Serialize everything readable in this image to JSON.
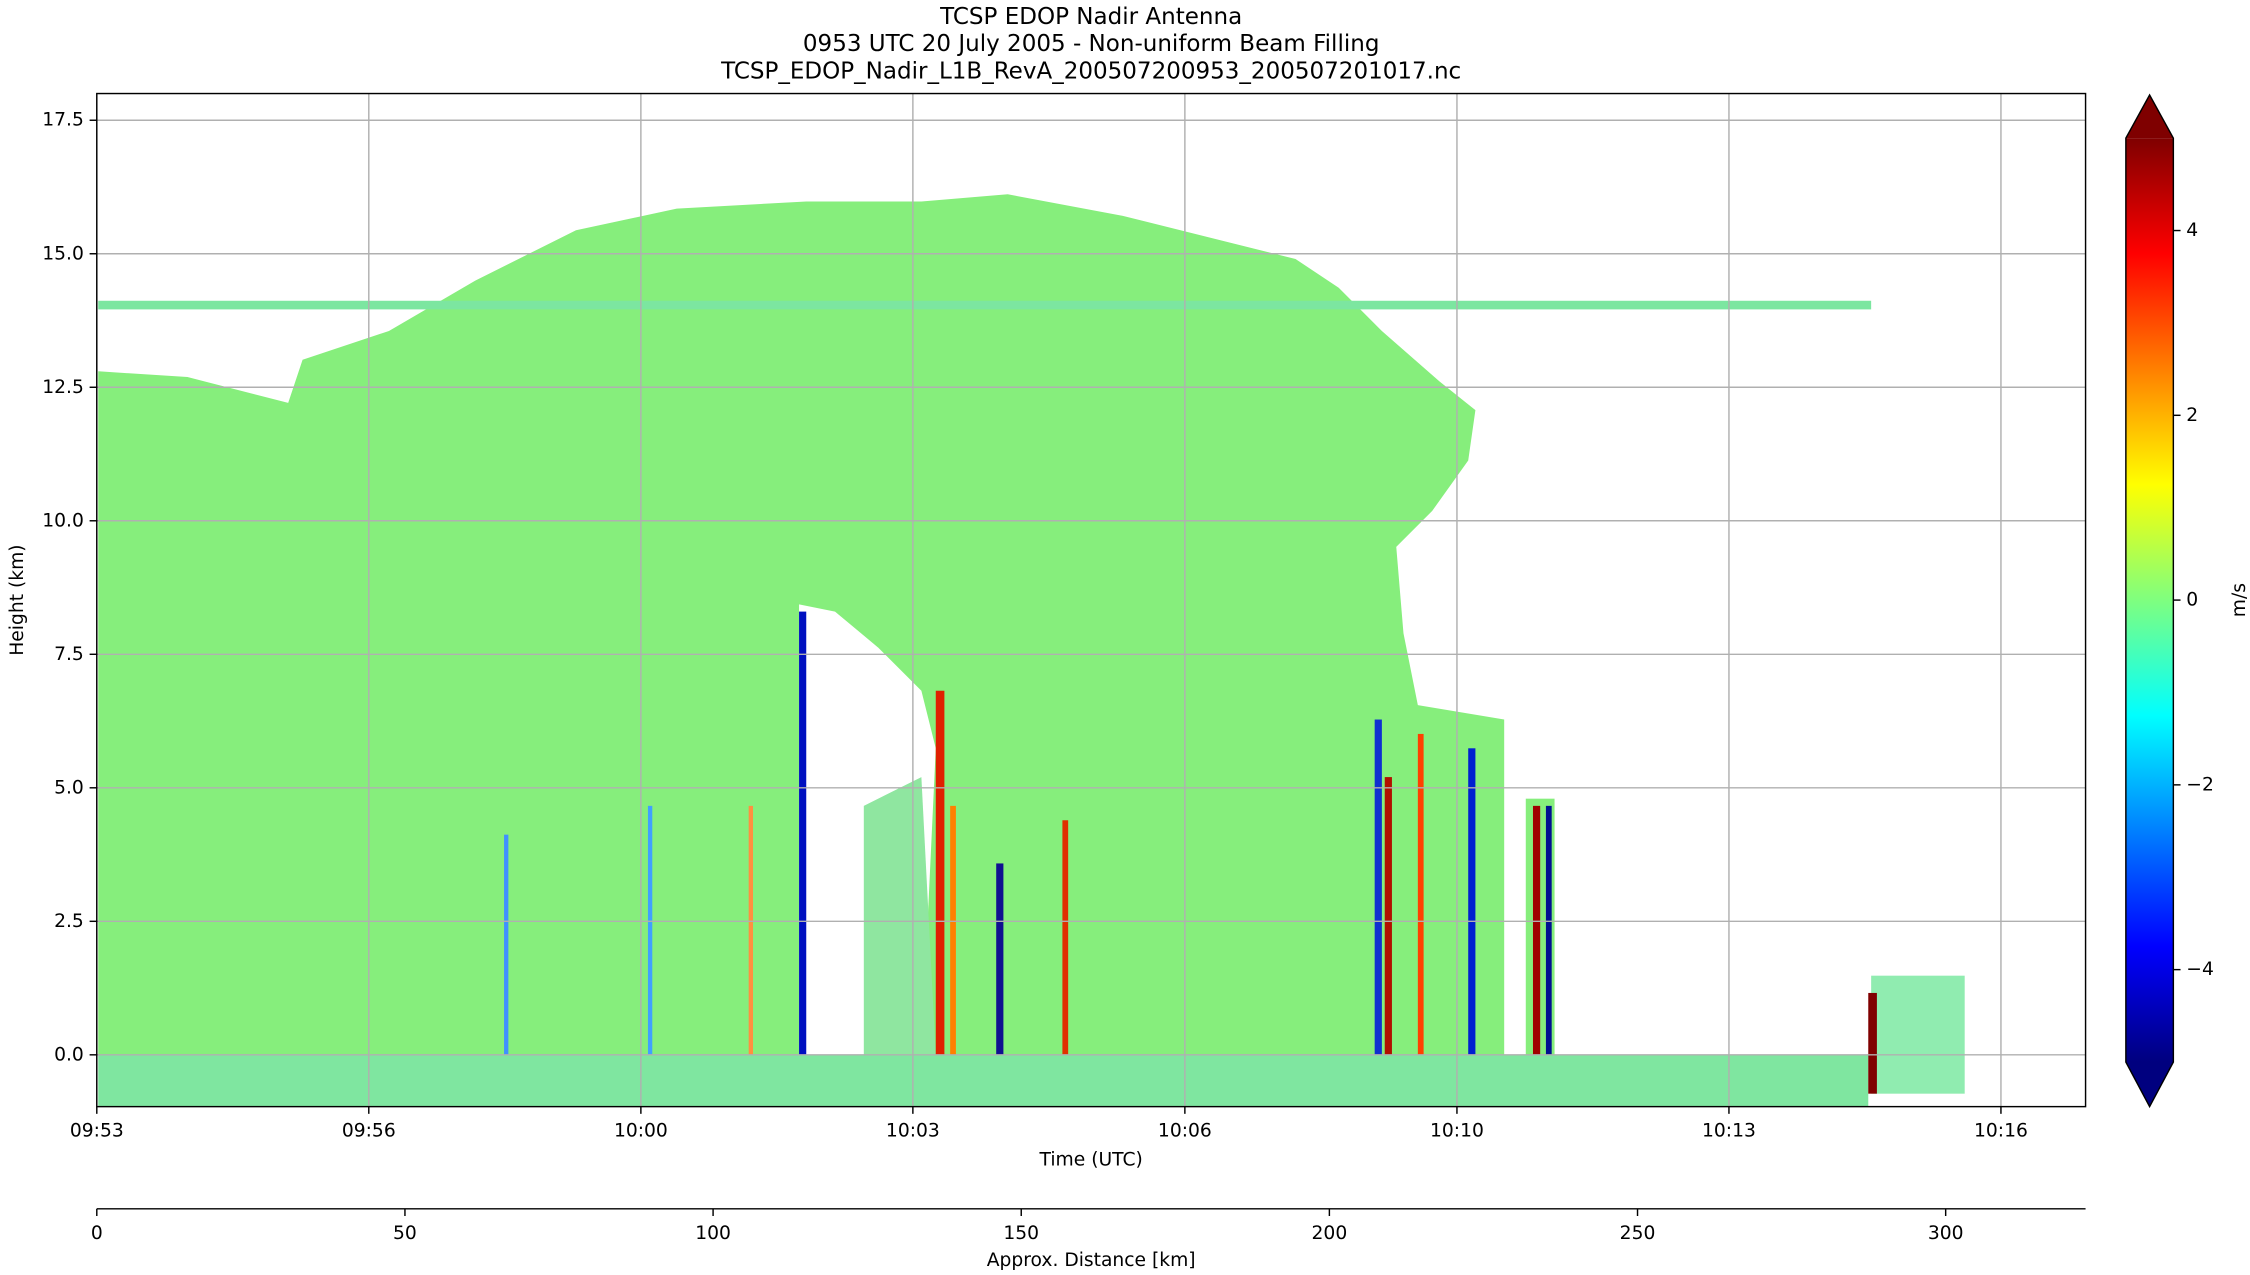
{
  "chart_data": {
    "type": "heatmap",
    "title": [
      "TCSP EDOP Nadir Antenna",
      "0953 UTC 20 July 2005 - Non-uniform Beam Filling",
      "TCSP_EDOP_Nadir_L1B_RevA_200507200953_200507201017.nc"
    ],
    "xlabel": "Time (UTC)",
    "ylabel": "Height (km)",
    "xlim": [
      593,
      617.37
    ],
    "xticks": [
      {
        "value": 593,
        "label": "09:53"
      },
      {
        "value": 596.333,
        "label": "09:56"
      },
      {
        "value": 599.667,
        "label": "10:00"
      },
      {
        "value": 603,
        "label": "10:03"
      },
      {
        "value": 606.333,
        "label": "10:06"
      },
      {
        "value": 609.667,
        "label": "10:10"
      },
      {
        "value": 613,
        "label": "10:13"
      },
      {
        "value": 616.333,
        "label": "10:16"
      }
    ],
    "ylim": [
      -0.97,
      18.0
    ],
    "yticks": [
      {
        "value": 0,
        "label": "0.0"
      },
      2.5,
      {
        "value": 5,
        "label": "5.0"
      },
      7.5,
      {
        "value": 10,
        "label": "10.0"
      },
      12.5,
      {
        "value": 15,
        "label": "15.0"
      },
      17.5
    ],
    "x2label": "Approx. Distance [km]",
    "x2lim": [
      0,
      322.7
    ],
    "x2ticks": [
      0,
      50,
      100,
      150,
      200,
      250,
      300
    ],
    "grid": true,
    "colorbar": {
      "label": "m/s",
      "lim": [
        -5,
        5
      ],
      "ticks": [
        {
          "value": -4,
          "label": "−4"
        },
        {
          "value": -2,
          "label": "−2"
        },
        0,
        2,
        4
      ],
      "extend": "both"
    }
  }
}
